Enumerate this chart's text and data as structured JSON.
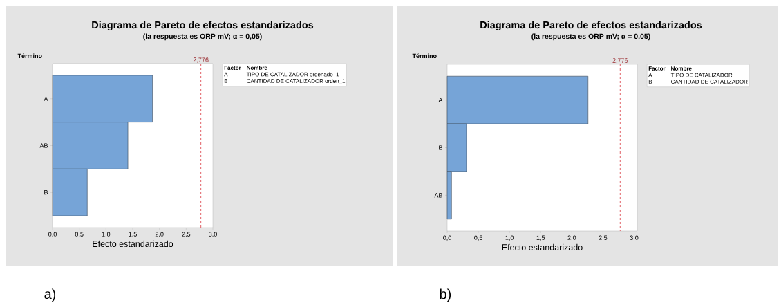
{
  "chart_data": [
    {
      "type": "bar",
      "orientation": "horizontal",
      "title": "Diagrama de Pareto de efectos estandarizados",
      "subtitle": "(la respuesta es ORP mV; α = 0,05)",
      "ylabel": "Término",
      "xlabel": "Efecto estandarizado",
      "categories": [
        "A",
        "AB",
        "B"
      ],
      "values": [
        1.87,
        1.41,
        0.65
      ],
      "color": "#76a4d7",
      "xlim": [
        0,
        3.0
      ],
      "xticks": [
        {
          "value": 0,
          "label": "0,0"
        },
        {
          "value": 0.5,
          "label": "0,5"
        },
        {
          "value": 1.0,
          "label": "1,0"
        },
        {
          "value": 1.5,
          "label": "1,5"
        },
        {
          "value": 2.0,
          "label": "2,0"
        },
        {
          "value": 2.5,
          "label": "2,5"
        },
        {
          "value": 3.0,
          "label": "3,0"
        }
      ],
      "ref_lines": [
        {
          "axis": "x",
          "value": 2.776,
          "label": "2,776",
          "color": "#d9363e",
          "line_style": "dashed"
        }
      ],
      "annotations": [
        "Factor",
        "Nombre",
        "A",
        "TIPO DE CATALIZADOR ordenado_1",
        "B",
        "CANTIDAD DE CATALIZADOR orden_1",
        "a)"
      ]
    },
    {
      "type": "bar",
      "orientation": "horizontal",
      "title": "Diagrama de Pareto de efectos estandarizados",
      "subtitle": "(la respuesta es ORP mV; α = 0,05)",
      "ylabel": "Término",
      "xlabel": "Efecto estandarizado",
      "categories": [
        "A",
        "B",
        "AB"
      ],
      "values": [
        2.26,
        0.31,
        0.07
      ],
      "color": "#76a4d7",
      "xlim": [
        0,
        3.05
      ],
      "xticks": [
        {
          "value": 0,
          "label": "0,0"
        },
        {
          "value": 0.5,
          "label": "0,5"
        },
        {
          "value": 1.0,
          "label": "1,0"
        },
        {
          "value": 1.5,
          "label": "1,5"
        },
        {
          "value": 2.0,
          "label": "2,0"
        },
        {
          "value": 2.5,
          "label": "2,5"
        },
        {
          "value": 3.0,
          "label": "3,0"
        }
      ],
      "ref_lines": [
        {
          "axis": "x",
          "value": 2.776,
          "label": "2,776",
          "color": "#d9363e",
          "line_style": "dashed"
        }
      ],
      "annotations": [
        "Factor",
        "Nombre",
        "A",
        "TIPO DE CATALIZADOR",
        "B",
        "CANTIDAD DE CATALIZADOR",
        "b)"
      ]
    }
  ]
}
